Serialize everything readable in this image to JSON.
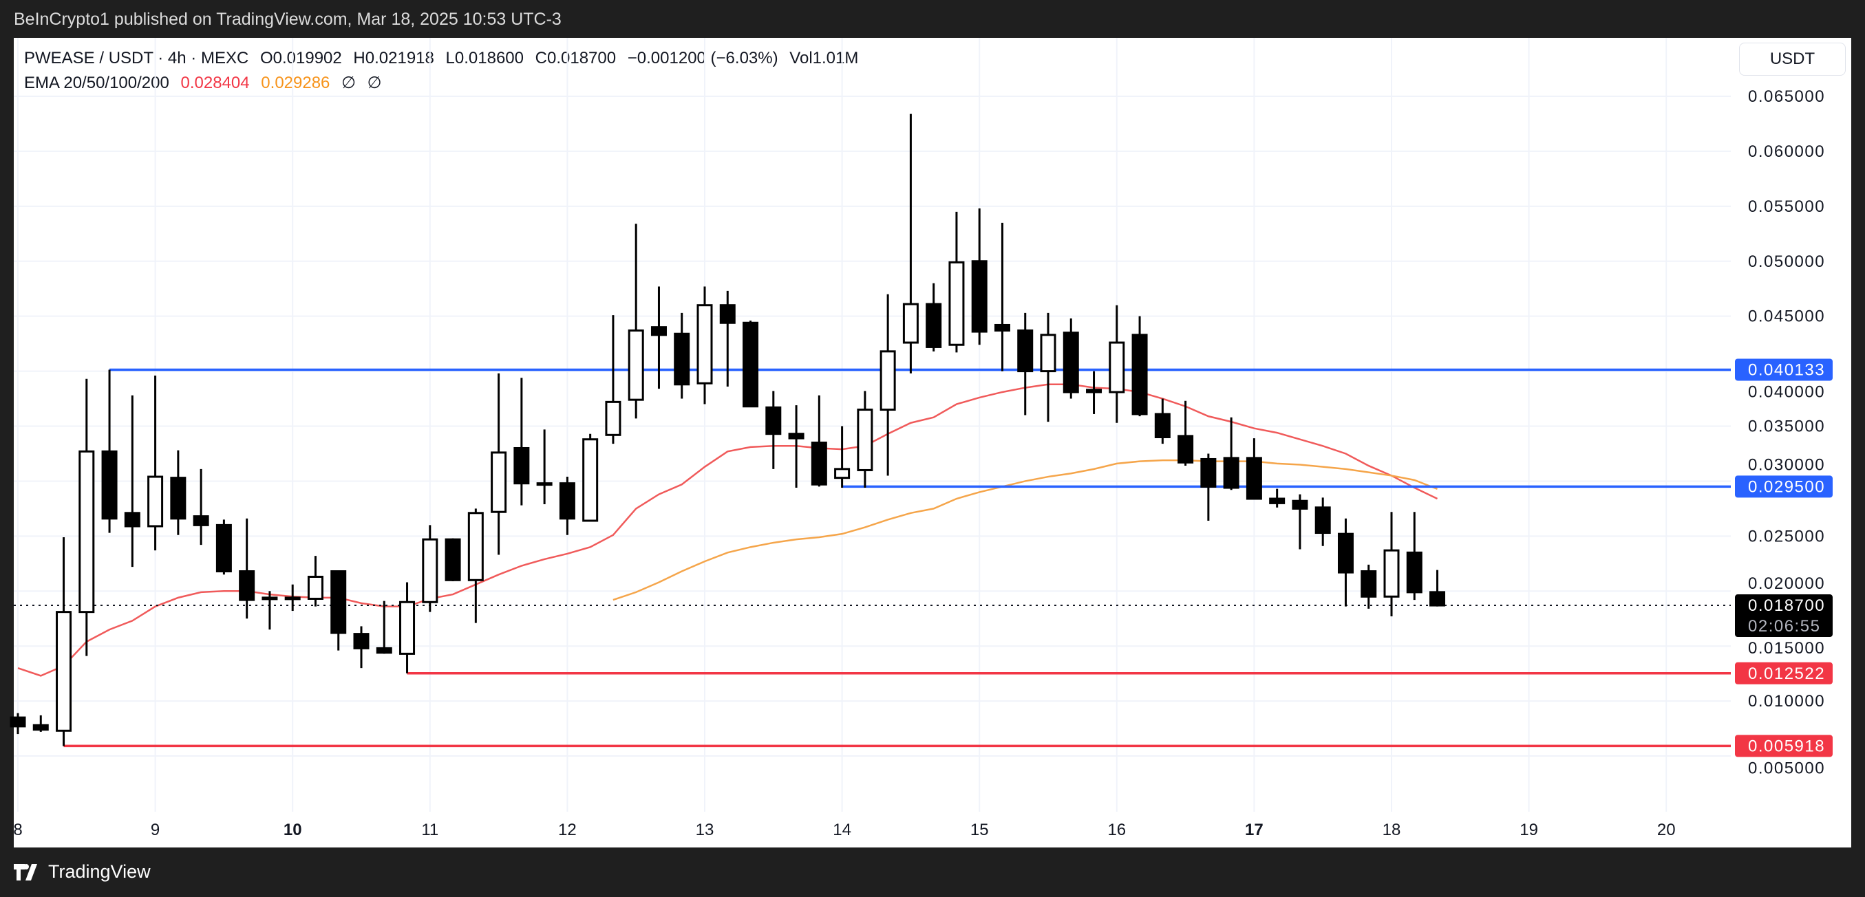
{
  "publish_bar": {
    "text": "BeInCrypto1 published on TradingView.com, Mar 18, 2025 10:53 UTC-3"
  },
  "legend": {
    "symbol": "PWEASE / USDT · 4h · MEXC",
    "open": "O0.019902",
    "high": "H0.021918",
    "low": "L0.018600",
    "close": "C0.018700",
    "change": "−0.001200 (−6.03%)",
    "volume": "Vol1.01M",
    "ema_label": "EMA 20/50/100/200",
    "ema20": "0.028404",
    "ema50": "0.029286",
    "ema100": "∅",
    "ema200": "∅",
    "ema20_color": "#f23645",
    "ema50_color": "#f7931a"
  },
  "currency_button": "USDT",
  "footer": {
    "brand": "TradingView"
  },
  "colors": {
    "support": "#f23645",
    "resistance": "#2962ff",
    "ema20_line": "#f05a5a",
    "ema50_line": "#f5a54a",
    "candle": "#000000"
  },
  "chart_data": {
    "type": "candlestick",
    "interval": "4h",
    "start": "Mar 8 00:00",
    "x_tick_labels": [
      "8",
      "9",
      "10",
      "11",
      "12",
      "13",
      "14",
      "15",
      "16",
      "17",
      "18",
      "19",
      "20"
    ],
    "x_tick_bold": [
      "10",
      "17"
    ],
    "y_tick_labels": [
      "0.065000",
      "0.060000",
      "0.055000",
      "0.050000",
      "0.045000",
      "0.040000",
      "0.035000",
      "0.030000",
      "0.025000",
      "0.020000",
      "0.015000",
      "0.010000",
      "0.005000"
    ],
    "ylim": [
      0.0,
      0.068
    ],
    "grid": true,
    "ohlc": [
      [
        0.0085,
        0.0089,
        0.007,
        0.0077
      ],
      [
        0.0078,
        0.0087,
        0.0072,
        0.0074
      ],
      [
        0.0073,
        0.0249,
        0.0059,
        0.0181
      ],
      [
        0.0181,
        0.0393,
        0.0141,
        0.0327
      ],
      [
        0.0327,
        0.040133,
        0.0253,
        0.0266
      ],
      [
        0.0271,
        0.0378,
        0.0222,
        0.0259
      ],
      [
        0.0259,
        0.0396,
        0.0237,
        0.0304
      ],
      [
        0.0303,
        0.0328,
        0.0251,
        0.0266
      ],
      [
        0.0268,
        0.0311,
        0.0242,
        0.026
      ],
      [
        0.026,
        0.0265,
        0.0215,
        0.0218
      ],
      [
        0.0218,
        0.0266,
        0.0175,
        0.0192
      ],
      [
        0.0194,
        0.02,
        0.0165,
        0.0194
      ],
      [
        0.0194,
        0.0206,
        0.0182,
        0.0194
      ],
      [
        0.0193,
        0.0232,
        0.0186,
        0.0213
      ],
      [
        0.0218,
        0.0218,
        0.0146,
        0.0162
      ],
      [
        0.0161,
        0.0168,
        0.013,
        0.0148
      ],
      [
        0.0148,
        0.0191,
        0.0143,
        0.0144
      ],
      [
        0.0143,
        0.0208,
        0.012522,
        0.019
      ],
      [
        0.019,
        0.026,
        0.0181,
        0.0247
      ],
      [
        0.0247,
        0.0248,
        0.0209,
        0.021
      ],
      [
        0.021,
        0.0275,
        0.0171,
        0.0271
      ],
      [
        0.0272,
        0.0398,
        0.0233,
        0.0326
      ],
      [
        0.033,
        0.0394,
        0.0278,
        0.0298
      ],
      [
        0.0298,
        0.0347,
        0.0279,
        0.0297
      ],
      [
        0.0298,
        0.0304,
        0.0251,
        0.0266
      ],
      [
        0.0264,
        0.0343,
        0.0264,
        0.0338
      ],
      [
        0.0342,
        0.0451,
        0.0334,
        0.0372
      ],
      [
        0.0374,
        0.0534,
        0.0357,
        0.0437
      ],
      [
        0.044,
        0.0477,
        0.0384,
        0.0433
      ],
      [
        0.0434,
        0.0453,
        0.0375,
        0.0388
      ],
      [
        0.0389,
        0.0477,
        0.037,
        0.046
      ],
      [
        0.046,
        0.0473,
        0.0386,
        0.0444
      ],
      [
        0.0444,
        0.0446,
        0.0368,
        0.0368
      ],
      [
        0.0367,
        0.0382,
        0.0311,
        0.0343
      ],
      [
        0.0343,
        0.0369,
        0.0294,
        0.0339
      ],
      [
        0.0335,
        0.0378,
        0.0295,
        0.0297
      ],
      [
        0.0303,
        0.035,
        0.0294,
        0.0311
      ],
      [
        0.031,
        0.0382,
        0.0294,
        0.0365
      ],
      [
        0.0365,
        0.047,
        0.0305,
        0.0418
      ],
      [
        0.0426,
        0.0634,
        0.0398,
        0.0461
      ],
      [
        0.0461,
        0.048,
        0.0418,
        0.0422
      ],
      [
        0.0424,
        0.0545,
        0.0417,
        0.0499
      ],
      [
        0.05,
        0.0548,
        0.0424,
        0.0436
      ],
      [
        0.0442,
        0.0535,
        0.04,
        0.0437
      ],
      [
        0.0437,
        0.0453,
        0.036,
        0.04
      ],
      [
        0.04,
        0.0453,
        0.0354,
        0.0433
      ],
      [
        0.0435,
        0.0448,
        0.0375,
        0.0381
      ],
      [
        0.0383,
        0.04,
        0.0361,
        0.0381
      ],
      [
        0.0381,
        0.046,
        0.0353,
        0.0426
      ],
      [
        0.0433,
        0.045,
        0.0359,
        0.0361
      ],
      [
        0.0361,
        0.0375,
        0.0334,
        0.034
      ],
      [
        0.0341,
        0.0373,
        0.0314,
        0.0317
      ],
      [
        0.032,
        0.0325,
        0.0264,
        0.0295
      ],
      [
        0.0321,
        0.0358,
        0.0292,
        0.0294
      ],
      [
        0.0321,
        0.0339,
        0.0284,
        0.0284
      ],
      [
        0.0284,
        0.0293,
        0.0276,
        0.028
      ],
      [
        0.0282,
        0.0288,
        0.0238,
        0.0275
      ],
      [
        0.0276,
        0.0285,
        0.0241,
        0.0253
      ],
      [
        0.0252,
        0.0266,
        0.0186,
        0.0217
      ],
      [
        0.0218,
        0.0224,
        0.0184,
        0.0195
      ],
      [
        0.0195,
        0.0272,
        0.0177,
        0.0237
      ],
      [
        0.0235,
        0.0272,
        0.0192,
        0.0199
      ],
      [
        0.019902,
        0.021918,
        0.0186,
        0.0187
      ]
    ],
    "ema20": [
      0.013,
      0.0123,
      0.0132,
      0.0154,
      0.0165,
      0.0173,
      0.0186,
      0.0194,
      0.0199,
      0.02,
      0.02,
      0.0197,
      0.0195,
      0.0194,
      0.0194,
      0.0189,
      0.0186,
      0.0186,
      0.0193,
      0.0197,
      0.0206,
      0.0215,
      0.0223,
      0.0229,
      0.0234,
      0.024,
      0.0251,
      0.0275,
      0.0288,
      0.0297,
      0.0313,
      0.0327,
      0.0331,
      0.0332,
      0.0332,
      0.033,
      0.0329,
      0.0332,
      0.0343,
      0.0353,
      0.0358,
      0.037,
      0.0376,
      0.0381,
      0.0385,
      0.0388,
      0.0388,
      0.0385,
      0.0384,
      0.0381,
      0.0375,
      0.0368,
      0.0359,
      0.0354,
      0.0348,
      0.0344,
      0.0338,
      0.0332,
      0.0325,
      0.0314,
      0.0305,
      0.0294,
      0.028404
    ],
    "ema50_start_index": 26,
    "ema50": [
      0.0192,
      0.0199,
      0.0208,
      0.0218,
      0.0227,
      0.0235,
      0.024,
      0.0244,
      0.0247,
      0.0249,
      0.0252,
      0.0258,
      0.0265,
      0.0271,
      0.0275,
      0.0284,
      0.029,
      0.0295,
      0.03,
      0.0304,
      0.0307,
      0.0311,
      0.0316,
      0.0318,
      0.0319,
      0.0319,
      0.0318,
      0.0318,
      0.0318,
      0.0316,
      0.0315,
      0.0313,
      0.0311,
      0.0308,
      0.0305,
      0.0301,
      0.029286
    ],
    "levels": [
      {
        "price": 0.040133,
        "label": "0.040133",
        "kind": "resistance",
        "from_index": 4
      },
      {
        "price": 0.0295,
        "label": "0.029500",
        "kind": "resistance",
        "from_index": 36
      },
      {
        "price": 0.012522,
        "label": "0.012522",
        "kind": "support",
        "from_index": 17
      },
      {
        "price": 0.005918,
        "label": "0.005918",
        "kind": "support",
        "from_index": 2
      }
    ],
    "last_price": {
      "price": 0.0187,
      "label": "0.018700",
      "countdown": "02:06:55"
    }
  }
}
